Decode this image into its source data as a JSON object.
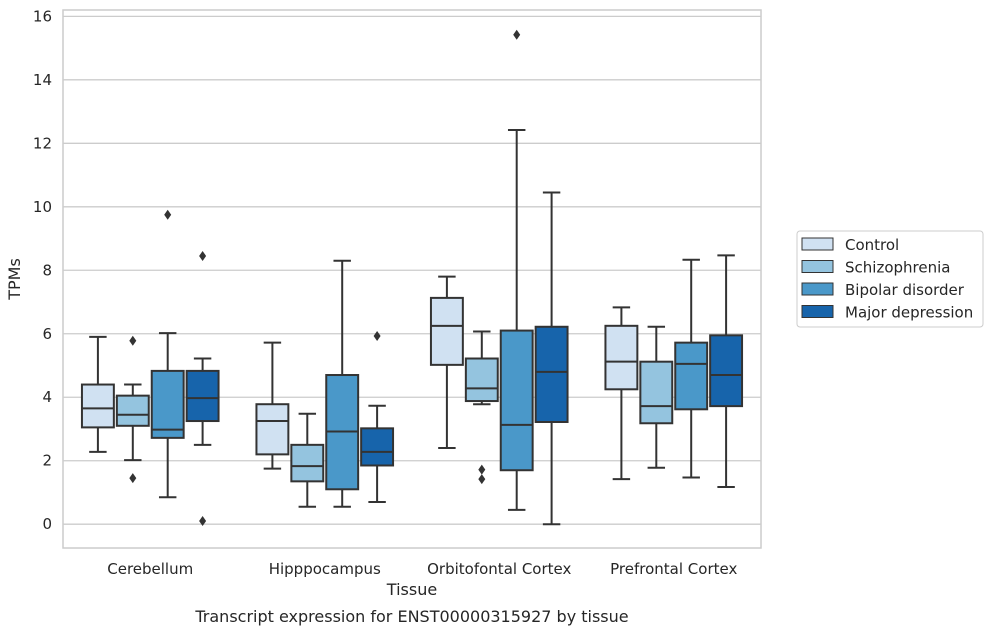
{
  "chart_data": {
    "type": "box",
    "caption": "Transcript expression for ENST00000315927 by tissue",
    "xlabel": "Tissue",
    "ylabel": "TPMs",
    "ylim": [
      -0.75,
      16.2
    ],
    "yticks": [
      0,
      2,
      4,
      6,
      8,
      10,
      12,
      14,
      16
    ],
    "grid": true,
    "legend_position": "right",
    "categories": [
      "Cerebellum",
      "Hipppocampus",
      "Orbitofontal Cortex",
      "Prefrontal Cortex"
    ],
    "series": [
      {
        "name": "Control",
        "color": "#d0e1f2",
        "boxes": [
          {
            "whisker_low": 2.28,
            "q1": 3.05,
            "median": 3.65,
            "q3": 4.4,
            "whisker_high": 5.9,
            "outliers": []
          },
          {
            "whisker_low": 1.75,
            "q1": 2.2,
            "median": 3.25,
            "q3": 3.78,
            "whisker_high": 5.72,
            "outliers": []
          },
          {
            "whisker_low": 2.4,
            "q1": 5.02,
            "median": 6.25,
            "q3": 7.13,
            "whisker_high": 7.8,
            "outliers": []
          },
          {
            "whisker_low": 1.42,
            "q1": 4.25,
            "median": 5.12,
            "q3": 6.25,
            "whisker_high": 6.83,
            "outliers": []
          }
        ]
      },
      {
        "name": "Schizophrenia",
        "color": "#94c4df",
        "boxes": [
          {
            "whisker_low": 2.02,
            "q1": 3.1,
            "median": 3.45,
            "q3": 4.05,
            "whisker_high": 4.4,
            "outliers": [
              5.78,
              1.45
            ]
          },
          {
            "whisker_low": 0.55,
            "q1": 1.35,
            "median": 1.83,
            "q3": 2.5,
            "whisker_high": 3.48,
            "outliers": []
          },
          {
            "whisker_low": 3.78,
            "q1": 3.88,
            "median": 4.28,
            "q3": 5.22,
            "whisker_high": 6.07,
            "outliers": [
              1.72,
              1.42
            ]
          },
          {
            "whisker_low": 1.78,
            "q1": 3.18,
            "median": 3.72,
            "q3": 5.12,
            "whisker_high": 6.22,
            "outliers": []
          }
        ]
      },
      {
        "name": "Bipolar disorder",
        "color": "#4a98c9",
        "boxes": [
          {
            "whisker_low": 0.85,
            "q1": 2.72,
            "median": 2.98,
            "q3": 4.83,
            "whisker_high": 6.02,
            "outliers": [
              9.75
            ]
          },
          {
            "whisker_low": 0.55,
            "q1": 1.1,
            "median": 2.92,
            "q3": 4.7,
            "whisker_high": 8.3,
            "outliers": []
          },
          {
            "whisker_low": 0.45,
            "q1": 1.7,
            "median": 3.13,
            "q3": 6.1,
            "whisker_high": 12.42,
            "outliers": [
              15.42
            ]
          },
          {
            "whisker_low": 1.47,
            "q1": 3.62,
            "median": 5.05,
            "q3": 5.72,
            "whisker_high": 8.33,
            "outliers": []
          }
        ]
      },
      {
        "name": "Major depression",
        "color": "#1764ab",
        "boxes": [
          {
            "whisker_low": 2.5,
            "q1": 3.25,
            "median": 3.97,
            "q3": 4.83,
            "whisker_high": 5.22,
            "outliers": [
              8.45,
              0.1
            ]
          },
          {
            "whisker_low": 0.7,
            "q1": 1.85,
            "median": 2.28,
            "q3": 3.02,
            "whisker_high": 3.73,
            "outliers": [
              5.93
            ]
          },
          {
            "whisker_low": 0.0,
            "q1": 3.22,
            "median": 4.8,
            "q3": 6.22,
            "whisker_high": 10.45,
            "outliers": []
          },
          {
            "whisker_low": 1.17,
            "q1": 3.72,
            "median": 4.7,
            "q3": 5.95,
            "whisker_high": 8.47,
            "outliers": []
          }
        ]
      }
    ]
  }
}
